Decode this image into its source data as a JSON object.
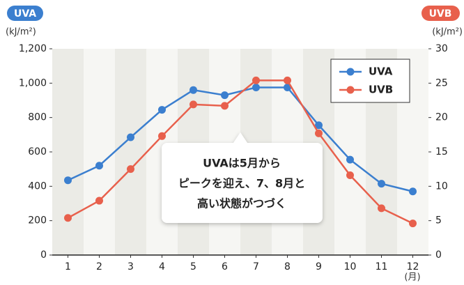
{
  "chart_data": {
    "type": "line",
    "categories": [
      "1",
      "2",
      "3",
      "4",
      "5",
      "6",
      "7",
      "8",
      "9",
      "10",
      "11",
      "12"
    ],
    "series": [
      {
        "name": "UVA",
        "color": "#3b7fcf",
        "values": [
          435,
          520,
          685,
          845,
          960,
          930,
          975,
          975,
          755,
          555,
          415,
          370
        ]
      },
      {
        "name": "UVB",
        "color": "#e8604c",
        "axis": "y2",
        "values": [
          5.4,
          7.9,
          12.5,
          17.3,
          21.9,
          21.7,
          25.4,
          25.4,
          17.7,
          11.6,
          6.8,
          4.6
        ]
      }
    ],
    "ylim": [
      0,
      1200
    ],
    "yticks": [
      0,
      200,
      400,
      600,
      800,
      {
        "value": 1000,
        "label": "1,000"
      },
      {
        "value": 1200,
        "label": "1,200"
      }
    ],
    "y2lim": [
      0,
      30
    ],
    "y2ticks": [
      0,
      5,
      10,
      15,
      20,
      25,
      30
    ],
    "y_axis_name": "UVA",
    "y_unit": "(kJ/m²)",
    "y2_axis_name": "UVB",
    "y2_unit": "(kJ/m²)",
    "x_unit": "(月)",
    "annotation": [
      "UVAは5月から",
      "ピークを迎え、7、8月と",
      "高い状態がつづく"
    ],
    "legend": "upper right"
  }
}
